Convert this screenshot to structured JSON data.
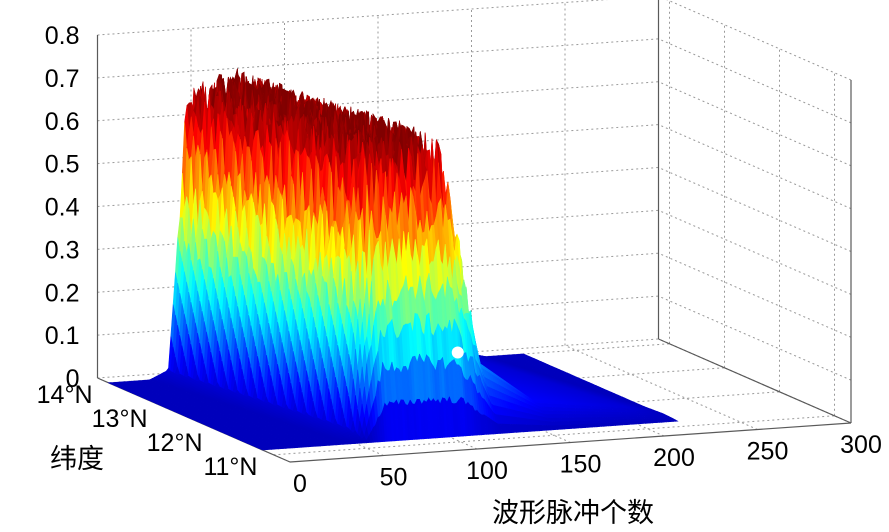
{
  "chart_data": {
    "type": "surface",
    "xlabel": "波形脉冲个数",
    "ylabel": "纬度",
    "zlabel": "",
    "x_ticks": [
      "0",
      "50",
      "100",
      "150",
      "200",
      "250",
      "300"
    ],
    "y_ticks": [
      "11°N",
      "12°N",
      "13°N",
      "14°N"
    ],
    "z_ticks": [
      "0",
      "0.1",
      "0.2",
      "0.3",
      "0.4",
      "0.5",
      "0.6",
      "0.7",
      "0.8"
    ],
    "xlim": [
      0,
      300
    ],
    "ylim": [
      10.7,
      14.2
    ],
    "zlim": [
      0,
      0.8
    ],
    "grid": true,
    "colormap": "jet",
    "colormap_stops": [
      "#00008f",
      "#0000ff",
      "#0080ff",
      "#00ffff",
      "#80ff80",
      "#ffff00",
      "#ff8000",
      "#ff0000",
      "#800000"
    ],
    "surface_profile": {
      "description_values_x": [
        0,
        40,
        50,
        60,
        80,
        100,
        110,
        120,
        150,
        200,
        220
      ],
      "description_values_z": [
        0.0,
        0.0,
        0.02,
        0.62,
        0.66,
        0.62,
        0.4,
        0.15,
        0.05,
        0.02,
        0.0
      ],
      "peak_z": 0.72
    }
  }
}
